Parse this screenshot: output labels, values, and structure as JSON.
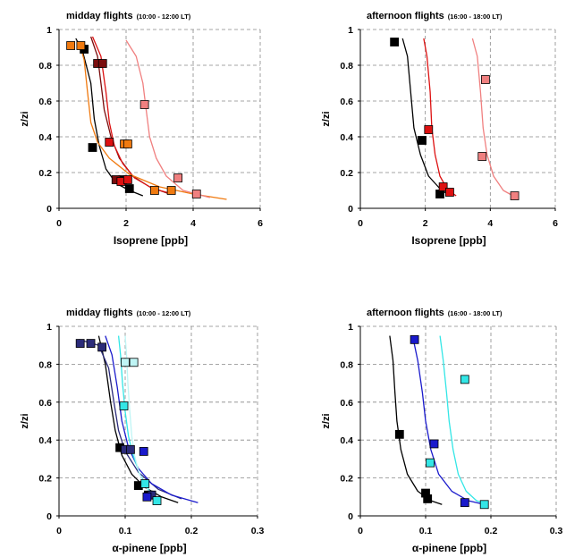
{
  "chart_data": [
    {
      "type": "scatter",
      "title": "midday flights",
      "subtitle": "(10:00 - 12:00 LT)",
      "xlabel": "Isoprene [ppb]",
      "ylabel": "z/zi",
      "xlim": [
        0,
        6
      ],
      "ylim": [
        0,
        1
      ],
      "xticks": [
        "0",
        "2",
        "4",
        "6"
      ],
      "yticks": [
        "0",
        "0.2",
        "0.4",
        "0.6",
        "0.8",
        "1"
      ],
      "grid": "dashed",
      "colors": {
        "black": "#000000",
        "maroon": "#7a0d0d",
        "red": "#dd1111",
        "orange": "#f07a10",
        "pink": "#f08080"
      },
      "series": [
        {
          "color": "black",
          "points": [
            [
              0.75,
              0.89
            ],
            [
              1.0,
              0.34
            ],
            [
              1.9,
              0.16
            ],
            [
              2.1,
              0.11
            ]
          ],
          "curve": [
            [
              0.5,
              0.95
            ],
            [
              0.7,
              0.88
            ],
            [
              0.95,
              0.7
            ],
            [
              1.05,
              0.5
            ],
            [
              1.2,
              0.35
            ],
            [
              1.4,
              0.22
            ],
            [
              1.7,
              0.14
            ],
            [
              2.1,
              0.1
            ],
            [
              2.5,
              0.07
            ]
          ]
        },
        {
          "color": "maroon",
          "points": [
            [
              1.15,
              0.81
            ],
            [
              1.3,
              0.81
            ],
            [
              1.7,
              0.16
            ]
          ],
          "curve": [
            [
              0.95,
              0.96
            ],
            [
              1.15,
              0.85
            ],
            [
              1.25,
              0.7
            ],
            [
              1.35,
              0.55
            ],
            [
              1.55,
              0.4
            ],
            [
              1.8,
              0.28
            ],
            [
              2.2,
              0.18
            ],
            [
              2.7,
              0.12
            ],
            [
              3.3,
              0.08
            ]
          ]
        },
        {
          "color": "red",
          "points": [
            [
              1.5,
              0.37
            ],
            [
              1.85,
              0.15
            ],
            [
              2.05,
              0.16
            ]
          ],
          "curve": [
            [
              1.0,
              0.96
            ],
            [
              1.25,
              0.85
            ],
            [
              1.4,
              0.65
            ],
            [
              1.5,
              0.48
            ],
            [
              1.65,
              0.35
            ],
            [
              1.9,
              0.25
            ],
            [
              2.25,
              0.17
            ],
            [
              2.8,
              0.11
            ],
            [
              3.4,
              0.08
            ]
          ]
        },
        {
          "color": "orange",
          "points": [
            [
              0.35,
              0.91
            ],
            [
              0.65,
              0.91
            ],
            [
              1.95,
              0.36
            ],
            [
              2.05,
              0.36
            ],
            [
              2.85,
              0.1
            ],
            [
              3.35,
              0.1
            ]
          ],
          "curve": [
            [
              0.6,
              0.93
            ],
            [
              0.75,
              0.83
            ],
            [
              0.85,
              0.65
            ],
            [
              0.95,
              0.48
            ],
            [
              1.15,
              0.37
            ],
            [
              1.5,
              0.28
            ],
            [
              2.1,
              0.19
            ],
            [
              3.0,
              0.12
            ],
            [
              4.0,
              0.08
            ],
            [
              5.0,
              0.05
            ]
          ]
        },
        {
          "color": "pink",
          "points": [
            [
              2.55,
              0.58
            ],
            [
              3.55,
              0.17
            ],
            [
              4.1,
              0.08
            ]
          ],
          "curve": [
            [
              2.0,
              0.94
            ],
            [
              2.3,
              0.85
            ],
            [
              2.5,
              0.7
            ],
            [
              2.6,
              0.55
            ],
            [
              2.7,
              0.4
            ],
            [
              2.9,
              0.28
            ],
            [
              3.2,
              0.18
            ],
            [
              3.7,
              0.1
            ],
            [
              4.5,
              0.06
            ]
          ]
        }
      ]
    },
    {
      "type": "scatter",
      "title": "afternoon flights",
      "subtitle": "(16:00 - 18:00 LT)",
      "xlabel": "Isoprene  [ppb]",
      "ylabel": "z/zi",
      "xlim": [
        0,
        6
      ],
      "ylim": [
        0,
        1
      ],
      "xticks": [
        "0",
        "2",
        "4",
        "6"
      ],
      "yticks": [
        "0",
        "0.2",
        "0.4",
        "0.6",
        "0.8",
        "1"
      ],
      "grid": "dashed",
      "colors": {
        "black": "#000000",
        "red": "#dd1111",
        "pink": "#f08080"
      },
      "series": [
        {
          "color": "black",
          "points": [
            [
              1.05,
              0.93
            ],
            [
              1.9,
              0.38
            ],
            [
              2.45,
              0.08
            ]
          ],
          "curve": [
            [
              1.3,
              0.95
            ],
            [
              1.45,
              0.85
            ],
            [
              1.55,
              0.65
            ],
            [
              1.65,
              0.45
            ],
            [
              1.85,
              0.3
            ],
            [
              2.1,
              0.18
            ],
            [
              2.5,
              0.1
            ],
            [
              2.8,
              0.07
            ]
          ]
        },
        {
          "color": "red",
          "points": [
            [
              2.1,
              0.44
            ],
            [
              2.55,
              0.12
            ],
            [
              2.75,
              0.09
            ]
          ],
          "curve": [
            [
              1.95,
              0.95
            ],
            [
              2.05,
              0.85
            ],
            [
              2.15,
              0.65
            ],
            [
              2.2,
              0.45
            ],
            [
              2.3,
              0.3
            ],
            [
              2.45,
              0.18
            ],
            [
              2.7,
              0.1
            ],
            [
              2.95,
              0.07
            ]
          ]
        },
        {
          "color": "pink",
          "points": [
            [
              3.85,
              0.72
            ],
            [
              3.75,
              0.29
            ],
            [
              4.75,
              0.07
            ]
          ],
          "curve": [
            [
              3.45,
              0.95
            ],
            [
              3.6,
              0.85
            ],
            [
              3.7,
              0.65
            ],
            [
              3.78,
              0.45
            ],
            [
              3.9,
              0.3
            ],
            [
              4.1,
              0.18
            ],
            [
              4.4,
              0.1
            ],
            [
              4.8,
              0.06
            ]
          ]
        }
      ]
    },
    {
      "type": "scatter",
      "title": "midday flights",
      "subtitle": "(10:00 - 12:00 LT)",
      "xlabel": "α-pinene [ppb]",
      "ylabel": "z/zi",
      "xlim": [
        0,
        0.3
      ],
      "ylim": [
        0,
        1
      ],
      "xticks": [
        "0",
        "0.1",
        "0.2",
        "0.3"
      ],
      "yticks": [
        "0",
        "0.2",
        "0.4",
        "0.6",
        "0.8",
        "1"
      ],
      "grid": "dashed",
      "colors": {
        "black": "#000000",
        "navy": "#2b2b7a",
        "blue": "#1a1acc",
        "cyan": "#33e6e6",
        "lightcyan": "#bff5f5"
      },
      "series": [
        {
          "color": "black",
          "points": [
            [
              0.092,
              0.36
            ],
            [
              0.12,
              0.16
            ],
            [
              0.135,
              0.11
            ]
          ],
          "curve": [
            [
              0.06,
              0.95
            ],
            [
              0.07,
              0.8
            ],
            [
              0.078,
              0.6
            ],
            [
              0.085,
              0.45
            ],
            [
              0.095,
              0.32
            ],
            [
              0.11,
              0.22
            ],
            [
              0.13,
              0.15
            ],
            [
              0.155,
              0.1
            ],
            [
              0.18,
              0.07
            ]
          ]
        },
        {
          "color": "navy",
          "points": [
            [
              0.032,
              0.91
            ],
            [
              0.048,
              0.91
            ],
            [
              0.065,
              0.89
            ],
            [
              0.1,
              0.35
            ],
            [
              0.108,
              0.35
            ],
            [
              0.14,
              0.11
            ]
          ],
          "curve": [
            [
              0.03,
              0.93
            ],
            [
              0.06,
              0.9
            ],
            [
              0.075,
              0.78
            ],
            [
              0.083,
              0.6
            ],
            [
              0.09,
              0.45
            ],
            [
              0.1,
              0.34
            ],
            [
              0.12,
              0.23
            ],
            [
              0.15,
              0.14
            ],
            [
              0.185,
              0.09
            ]
          ]
        },
        {
          "color": "blue",
          "points": [
            [
              0.128,
              0.34
            ],
            [
              0.133,
              0.1
            ]
          ],
          "curve": [
            [
              0.07,
              0.95
            ],
            [
              0.08,
              0.85
            ],
            [
              0.088,
              0.68
            ],
            [
              0.095,
              0.5
            ],
            [
              0.105,
              0.36
            ],
            [
              0.12,
              0.25
            ],
            [
              0.14,
              0.17
            ],
            [
              0.17,
              0.11
            ],
            [
              0.21,
              0.07
            ]
          ]
        },
        {
          "color": "cyan",
          "points": [
            [
              0.098,
              0.58
            ],
            [
              0.13,
              0.17
            ],
            [
              0.148,
              0.08
            ]
          ],
          "curve": [
            [
              0.09,
              0.95
            ],
            [
              0.093,
              0.85
            ],
            [
              0.096,
              0.7
            ],
            [
              0.1,
              0.55
            ],
            [
              0.105,
              0.42
            ],
            [
              0.112,
              0.32
            ],
            [
              0.122,
              0.22
            ],
            [
              0.135,
              0.14
            ],
            [
              0.15,
              0.08
            ]
          ]
        },
        {
          "color": "lightcyan",
          "points": [
            [
              0.1,
              0.81
            ],
            [
              0.113,
              0.81
            ]
          ],
          "curve": [
            [
              0.1,
              0.95
            ],
            [
              0.102,
              0.85
            ],
            [
              0.104,
              0.7
            ],
            [
              0.107,
              0.55
            ],
            [
              0.11,
              0.42
            ],
            [
              0.114,
              0.32
            ],
            [
              0.12,
              0.24
            ],
            [
              0.128,
              0.17
            ],
            [
              0.14,
              0.11
            ]
          ]
        }
      ]
    },
    {
      "type": "scatter",
      "title": "afternoon flights",
      "subtitle": "(16:00 - 18:00 LT)",
      "xlabel": "α-pinene  [ppb]",
      "ylabel": "z/zi",
      "xlim": [
        0,
        0.3
      ],
      "ylim": [
        0,
        1
      ],
      "xticks": [
        "0",
        "0.1",
        "0.2",
        "0.3"
      ],
      "yticks": [
        "0",
        "0.2",
        "0.4",
        "0.6",
        "0.8",
        "1"
      ],
      "grid": "dashed",
      "colors": {
        "black": "#000000",
        "blue": "#1a1acc",
        "cyan": "#33e6e6"
      },
      "series": [
        {
          "color": "black",
          "points": [
            [
              0.06,
              0.43
            ],
            [
              0.1,
              0.12
            ],
            [
              0.103,
              0.09
            ]
          ],
          "curve": [
            [
              0.045,
              0.95
            ],
            [
              0.05,
              0.82
            ],
            [
              0.053,
              0.65
            ],
            [
              0.056,
              0.5
            ],
            [
              0.062,
              0.35
            ],
            [
              0.072,
              0.22
            ],
            [
              0.088,
              0.13
            ],
            [
              0.108,
              0.08
            ],
            [
              0.125,
              0.06
            ]
          ]
        },
        {
          "color": "blue",
          "points": [
            [
              0.083,
              0.93
            ],
            [
              0.113,
              0.38
            ],
            [
              0.16,
              0.07
            ]
          ],
          "curve": [
            [
              0.08,
              0.95
            ],
            [
              0.088,
              0.82
            ],
            [
              0.095,
              0.65
            ],
            [
              0.1,
              0.5
            ],
            [
              0.108,
              0.35
            ],
            [
              0.12,
              0.22
            ],
            [
              0.14,
              0.13
            ],
            [
              0.165,
              0.08
            ],
            [
              0.19,
              0.06
            ]
          ]
        },
        {
          "color": "cyan",
          "points": [
            [
              0.16,
              0.72
            ],
            [
              0.107,
              0.28
            ],
            [
              0.19,
              0.06
            ]
          ],
          "curve": [
            [
              0.122,
              0.95
            ],
            [
              0.127,
              0.82
            ],
            [
              0.132,
              0.65
            ],
            [
              0.136,
              0.5
            ],
            [
              0.142,
              0.35
            ],
            [
              0.15,
              0.22
            ],
            [
              0.162,
              0.13
            ],
            [
              0.178,
              0.08
            ],
            [
              0.195,
              0.06
            ]
          ]
        }
      ]
    }
  ]
}
